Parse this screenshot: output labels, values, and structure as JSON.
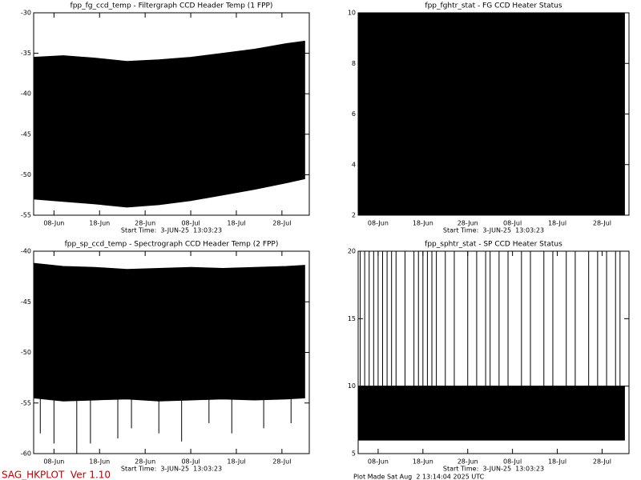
{
  "chart_data": [
    {
      "type": "band",
      "title": "fpp_fg_ccd_temp - Filtergraph CCD Header Temp (1 FPP)",
      "x_label": "Start Time:  3-JUN-25  13:03:23",
      "color": "#000000",
      "xlim": [
        "2025-06-03T13:03",
        "2025-08-03T00:00"
      ],
      "xticks": [
        {
          "value": "2025-06-08",
          "label": "08-Jun"
        },
        {
          "value": "2025-06-18",
          "label": "18-Jun"
        },
        {
          "value": "2025-06-28",
          "label": "28-Jun"
        },
        {
          "value": "2025-07-08",
          "label": "08-Jul"
        },
        {
          "value": "2025-07-18",
          "label": "18-Jul"
        },
        {
          "value": "2025-07-28",
          "label": "28-Jul"
        }
      ],
      "ylim": [
        -55,
        -30
      ],
      "yticks": [
        -55,
        -50,
        -45,
        -40,
        -35,
        -30
      ],
      "band": {
        "x": [
          "2025-06-03T13:03",
          "2025-06-10",
          "2025-06-17",
          "2025-06-24",
          "2025-07-01",
          "2025-07-08",
          "2025-07-15",
          "2025-07-22",
          "2025-07-29",
          "2025-08-02"
        ],
        "upper": [
          -35.5,
          -35.3,
          -35.6,
          -36,
          -35.8,
          -35.5,
          -35,
          -34.5,
          -33.8,
          -33.5
        ],
        "lower": [
          -53,
          -53.3,
          -53.6,
          -54,
          -53.7,
          -53.2,
          -52.5,
          -51.8,
          -51,
          -50.5
        ]
      }
    },
    {
      "type": "band",
      "title": "fpp_fghtr_stat - FG CCD Heater Status",
      "x_label": "Start Time:  3-JUN-25  13:03:23",
      "color": "#000000",
      "xlim": [
        "2025-06-03T13:03",
        "2025-08-03T00:00"
      ],
      "xticks": [
        {
          "value": "2025-06-08",
          "label": "08-Jun"
        },
        {
          "value": "2025-06-18",
          "label": "18-Jun"
        },
        {
          "value": "2025-06-28",
          "label": "28-Jun"
        },
        {
          "value": "2025-07-08",
          "label": "08-Jul"
        },
        {
          "value": "2025-07-18",
          "label": "18-Jul"
        },
        {
          "value": "2025-07-28",
          "label": "28-Jul"
        }
      ],
      "ylim": [
        2,
        10
      ],
      "yticks": [
        2,
        4,
        6,
        8,
        10
      ],
      "band": {
        "x": [
          "2025-06-03T13:03",
          "2025-08-02"
        ],
        "upper": [
          10,
          10
        ],
        "lower": [
          2,
          2
        ]
      }
    },
    {
      "type": "band",
      "title": "fpp_sp_ccd_temp - Spectrograph CCD Header Temp (2 FPP)",
      "x_label": "Start Time:  3-JUN-25  13:03:23",
      "color": "#000000",
      "xlim": [
        "2025-06-03T13:03",
        "2025-08-03T00:00"
      ],
      "xticks": [
        {
          "value": "2025-06-08",
          "label": "08-Jun"
        },
        {
          "value": "2025-06-18",
          "label": "18-Jun"
        },
        {
          "value": "2025-06-28",
          "label": "28-Jun"
        },
        {
          "value": "2025-07-08",
          "label": "08-Jul"
        },
        {
          "value": "2025-07-18",
          "label": "18-Jul"
        },
        {
          "value": "2025-07-28",
          "label": "28-Jul"
        }
      ],
      "ylim": [
        -60,
        -40
      ],
      "yticks": [
        -60,
        -55,
        -50,
        -45,
        -40
      ],
      "band": {
        "x": [
          "2025-06-03T13:03",
          "2025-06-10",
          "2025-06-17",
          "2025-06-24",
          "2025-07-01",
          "2025-07-08",
          "2025-07-15",
          "2025-07-22",
          "2025-07-29",
          "2025-08-02"
        ],
        "upper": [
          -41.2,
          -41.5,
          -41.6,
          -41.8,
          -41.7,
          -41.6,
          -41.7,
          -41.6,
          -41.5,
          -41.4
        ],
        "lower": [
          -54.5,
          -54.8,
          -54.7,
          -54.6,
          -54.8,
          -54.7,
          -54.6,
          -54.7,
          -54.6,
          -54.5
        ]
      },
      "dips": {
        "x": [
          "2025-06-05",
          "2025-06-08",
          "2025-06-13",
          "2025-06-16",
          "2025-06-22",
          "2025-06-25",
          "2025-07-01",
          "2025-07-06",
          "2025-07-12",
          "2025-07-17",
          "2025-07-24",
          "2025-07-30"
        ],
        "values": [
          -58,
          -59,
          -60,
          -59,
          -58.5,
          -57.5,
          -58,
          -58.8,
          -57,
          -58,
          -57.5,
          -57
        ]
      }
    },
    {
      "type": "band",
      "title": "fpp_sphtr_stat - SP CCD Heater Status",
      "x_label": "Start Time:  3-JUN-25  13:03:23",
      "color": "#000000",
      "xlim": [
        "2025-06-03T13:03",
        "2025-08-03T00:00"
      ],
      "xticks": [
        {
          "value": "2025-06-08",
          "label": "08-Jun"
        },
        {
          "value": "2025-06-18",
          "label": "18-Jun"
        },
        {
          "value": "2025-06-28",
          "label": "28-Jun"
        },
        {
          "value": "2025-07-08",
          "label": "08-Jul"
        },
        {
          "value": "2025-07-18",
          "label": "18-Jul"
        },
        {
          "value": "2025-07-28",
          "label": "28-Jul"
        }
      ],
      "ylim": [
        5,
        20
      ],
      "yticks": [
        5,
        10,
        15,
        20
      ],
      "band": {
        "x": [
          "2025-06-03T13:03",
          "2025-08-02"
        ],
        "upper": [
          10,
          10
        ],
        "lower": [
          6,
          6
        ]
      },
      "spikes": {
        "x": [
          "2025-06-04",
          "2025-06-05",
          "2025-06-06",
          "2025-06-07",
          "2025-06-08",
          "2025-06-09",
          "2025-06-10",
          "2025-06-11",
          "2025-06-12",
          "2025-06-14",
          "2025-06-16",
          "2025-06-17",
          "2025-06-18",
          "2025-06-19",
          "2025-06-20",
          "2025-06-21",
          "2025-06-23",
          "2025-06-25",
          "2025-06-28",
          "2025-06-30",
          "2025-07-02",
          "2025-07-03",
          "2025-07-05",
          "2025-07-07",
          "2025-07-10",
          "2025-07-12",
          "2025-07-15",
          "2025-07-17",
          "2025-07-20",
          "2025-07-22",
          "2025-07-25",
          "2025-07-27",
          "2025-07-29",
          "2025-07-31",
          "2025-08-01"
        ],
        "values": [
          20,
          20,
          20,
          20,
          20,
          20,
          20,
          20,
          20,
          20,
          20,
          20,
          20,
          20,
          20,
          20,
          20,
          20,
          20,
          20,
          20,
          20,
          20,
          20,
          20,
          20,
          20,
          20,
          20,
          20,
          20,
          20,
          20,
          20,
          20
        ]
      }
    }
  ],
  "footer": {
    "program": "SAG_HKPLOT  Ver 1.10",
    "plot_made": "Plot Made Sat Aug  2 13:14:04 2025 UTC"
  }
}
